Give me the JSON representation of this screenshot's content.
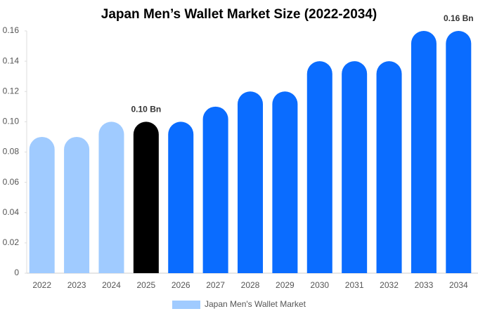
{
  "chart_data": {
    "type": "bar",
    "title": "Japan Men’s Wallet Market Size (2022-2034)",
    "categories": [
      "2022",
      "2023",
      "2024",
      "2025",
      "2026",
      "2027",
      "2028",
      "2029",
      "2030",
      "2031",
      "2032",
      "2033",
      "2034"
    ],
    "series": [
      {
        "name": "Japan Men's Wallet Market",
        "color": "#a0cbff",
        "values": [
          0.09,
          0.09,
          0.1,
          0.1,
          0.1,
          0.11,
          0.12,
          0.12,
          0.14,
          0.14,
          0.14,
          0.16,
          0.16
        ],
        "colors": [
          "#a0cbff",
          "#a0cbff",
          "#a0cbff",
          "#000000",
          "#0a6cff",
          "#0a6cff",
          "#0a6cff",
          "#0a6cff",
          "#0a6cff",
          "#0a6cff",
          "#0a6cff",
          "#0a6cff",
          "#0a6cff"
        ],
        "value_labels": [
          null,
          null,
          null,
          "0.10 Bn",
          null,
          null,
          null,
          null,
          null,
          null,
          null,
          null,
          "0.16 Bn"
        ]
      }
    ],
    "ylim": [
      0,
      0.16
    ],
    "yticks": [
      0,
      0.02,
      0.04,
      0.06,
      0.08,
      {
        "value": 0.1,
        "label": "0.10"
      },
      0.12,
      0.14,
      0.16
    ],
    "grid": false
  }
}
